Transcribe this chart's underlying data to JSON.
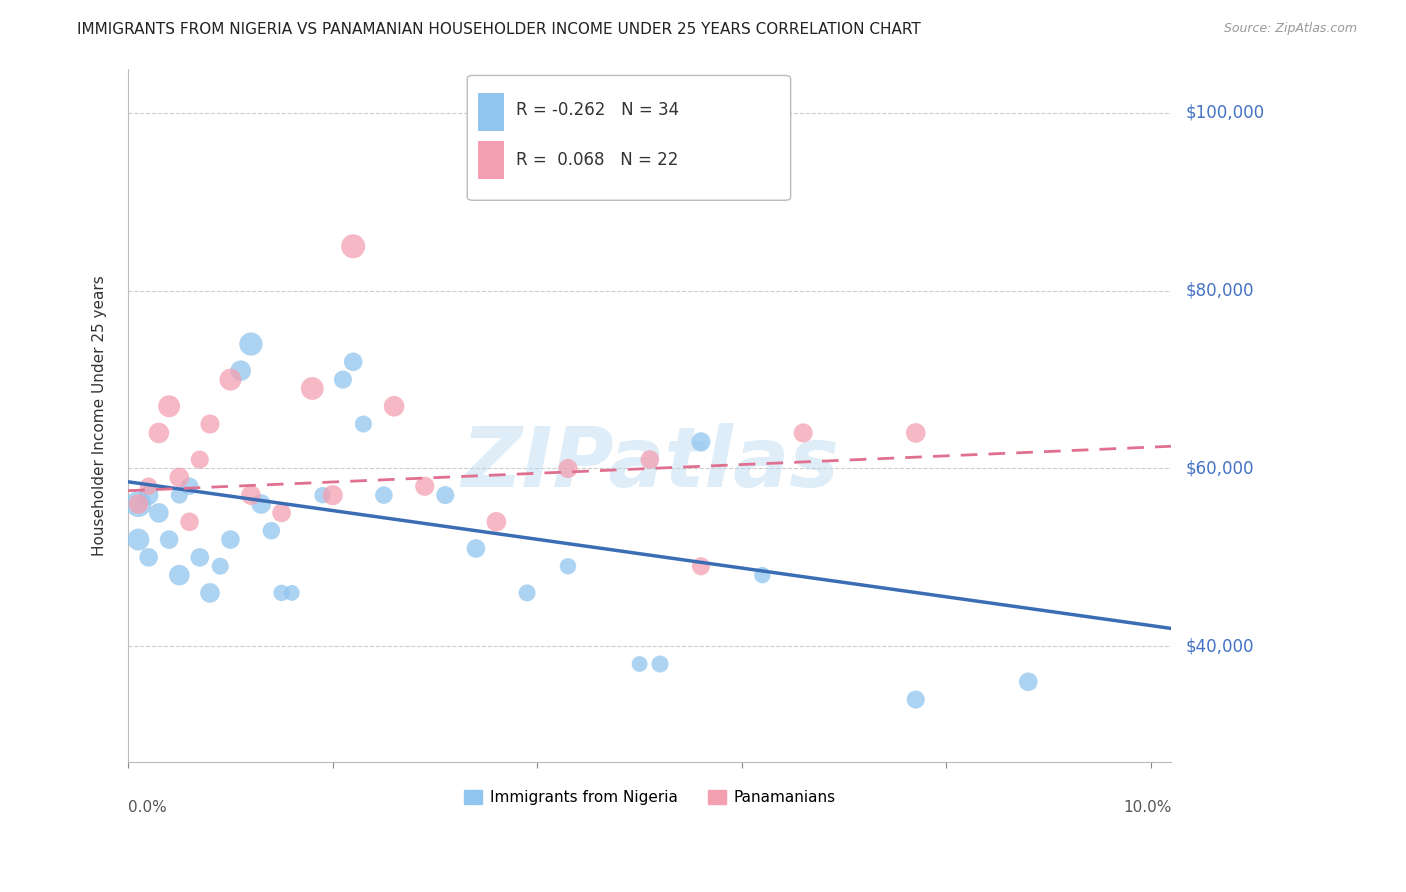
{
  "title": "IMMIGRANTS FROM NIGERIA VS PANAMANIAN HOUSEHOLDER INCOME UNDER 25 YEARS CORRELATION CHART",
  "source": "Source: ZipAtlas.com",
  "ylabel": "Householder Income Under 25 years",
  "xlim": [
    0.0,
    0.102
  ],
  "ylim": [
    27000,
    105000
  ],
  "yticks": [
    40000,
    60000,
    80000,
    100000
  ],
  "ytick_labels": [
    "$40,000",
    "$60,000",
    "$80,000",
    "$100,000"
  ],
  "legend_entries": [
    {
      "label": "Immigrants from Nigeria",
      "color": "#92C5EE",
      "R": "-0.262",
      "N": "34"
    },
    {
      "label": "Panamanians",
      "color": "#F4A0B0",
      "R": "0.068",
      "N": "22"
    }
  ],
  "watermark": "ZIPatlas",
  "nigeria_x": [
    0.001,
    0.001,
    0.002,
    0.002,
    0.003,
    0.004,
    0.005,
    0.005,
    0.006,
    0.007,
    0.008,
    0.009,
    0.01,
    0.011,
    0.012,
    0.013,
    0.014,
    0.015,
    0.016,
    0.019,
    0.021,
    0.022,
    0.023,
    0.025,
    0.031,
    0.034,
    0.039,
    0.043,
    0.05,
    0.052,
    0.056,
    0.062,
    0.077,
    0.088
  ],
  "nigeria_y": [
    56000,
    52000,
    57000,
    50000,
    55000,
    52000,
    57000,
    48000,
    58000,
    50000,
    46000,
    49000,
    52000,
    71000,
    74000,
    56000,
    53000,
    46000,
    46000,
    57000,
    70000,
    72000,
    65000,
    57000,
    57000,
    51000,
    46000,
    49000,
    38000,
    38000,
    63000,
    48000,
    34000,
    36000
  ],
  "nigeria_size": [
    350,
    250,
    200,
    180,
    200,
    180,
    150,
    220,
    160,
    180,
    200,
    150,
    180,
    220,
    280,
    200,
    160,
    140,
    130,
    140,
    170,
    180,
    150,
    160,
    170,
    180,
    150,
    140,
    130,
    150,
    190,
    140,
    170,
    180
  ],
  "panama_x": [
    0.001,
    0.002,
    0.003,
    0.004,
    0.005,
    0.006,
    0.007,
    0.008,
    0.01,
    0.012,
    0.015,
    0.018,
    0.02,
    0.022,
    0.026,
    0.029,
    0.036,
    0.043,
    0.051,
    0.056,
    0.066,
    0.077
  ],
  "panama_y": [
    56000,
    58000,
    64000,
    67000,
    59000,
    54000,
    61000,
    65000,
    70000,
    57000,
    55000,
    69000,
    57000,
    85000,
    67000,
    58000,
    54000,
    60000,
    61000,
    49000,
    64000,
    64000
  ],
  "panama_size": [
    200,
    160,
    220,
    250,
    200,
    180,
    170,
    190,
    250,
    200,
    180,
    270,
    210,
    300,
    220,
    190,
    200,
    190,
    180,
    170,
    190,
    200
  ],
  "nigeria_color": "#92C5EE",
  "panama_color": "#F4A0B0",
  "nigeria_line_color": "#3B6DB5",
  "panama_line_color": "#E07090",
  "grid_color": "#CCCCCC",
  "background_color": "#FFFFFF",
  "nigeria_trend": [
    58500,
    42000
  ],
  "panama_trend": [
    57500,
    62500
  ],
  "title_fontsize": 11,
  "axis_label_fontsize": 11,
  "tick_fontsize": 11
}
